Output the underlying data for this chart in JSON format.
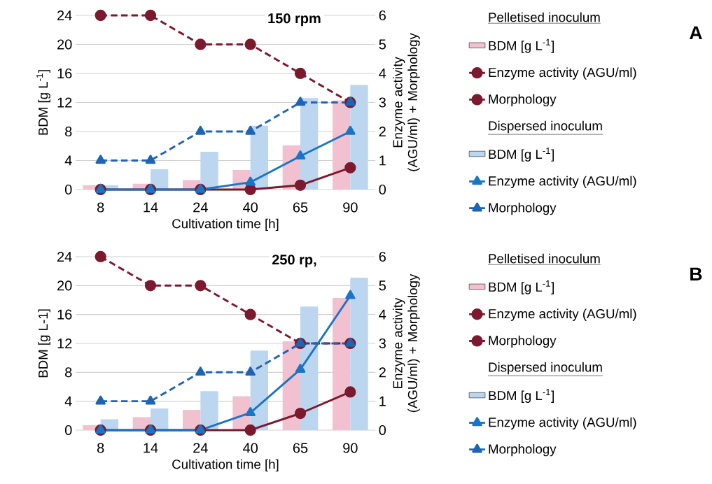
{
  "chart_data": [
    {
      "type": "bar",
      "title": "150 rpm",
      "xlabel": "Cultivation time [h]",
      "ylabel": "BDM [g L$^{-1}$]",
      "y2label": "Enzyme activity (AGU/ml) + Morphology",
      "categories": [
        "8",
        "14",
        "24",
        "40",
        "65",
        "90"
      ],
      "ylim": [
        0,
        24
      ],
      "yticks": [
        0,
        4,
        8,
        12,
        16,
        20,
        24
      ],
      "y2lim": [
        0,
        6
      ],
      "y2ticks": [
        0,
        1,
        2,
        3,
        4,
        5,
        6
      ],
      "grid": "y",
      "legend": "right",
      "annotations": [
        "Pelletised inoculum",
        "Dispersed inoculum",
        "A"
      ],
      "series": [
        {
          "name": "BDM [g L$^{-1}$]",
          "type": "bar",
          "color": "#f2c1cf",
          "values": [
            0.6,
            0.8,
            1.3,
            2.7,
            6.1,
            12.3
          ]
        },
        {
          "name": "Enzyme activity (AGU/ml)",
          "type": "line",
          "axis": "y2",
          "color": "#7b1a2f",
          "marker": "circle",
          "line_style": "solid",
          "values": [
            0,
            0,
            0,
            0,
            0.15,
            0.75
          ]
        },
        {
          "name": "Morphology",
          "type": "line",
          "axis": "y2",
          "color": "#7b1a2f",
          "marker": "circle",
          "line_style": "dashed",
          "values": [
            6,
            6,
            5,
            5,
            4,
            3
          ]
        },
        {
          "name": "BDM [g L$^{-1}$]",
          "type": "bar",
          "color": "#bcd6f0",
          "values": [
            0.6,
            2.8,
            5.2,
            8.8,
            12.6,
            14.4
          ]
        },
        {
          "name": "Enzyme activity (AGU/ml)",
          "type": "line",
          "axis": "y2",
          "color": "#1a75c6",
          "marker": "triangle",
          "line_style": "solid",
          "values": [
            0,
            0,
            0,
            0.25,
            1.15,
            2
          ]
        },
        {
          "name": "Morphology",
          "type": "line",
          "axis": "y2",
          "color": "#1f64b4",
          "marker": "triangle",
          "line_style": "dashed",
          "values": [
            1,
            1,
            2,
            2,
            3,
            3
          ]
        }
      ]
    },
    {
      "type": "bar",
      "title": "250 rp,",
      "xlabel": "Cultivation time [h]",
      "ylabel": "BDM [g L-1]",
      "y2label": "Enzyme activity (AGU/ml) + Morphology",
      "categories": [
        "8",
        "14",
        "24",
        "40",
        "65",
        "90"
      ],
      "ylim": [
        0,
        24
      ],
      "yticks": [
        0,
        4,
        8,
        12,
        16,
        20,
        24
      ],
      "y2lim": [
        0,
        6
      ],
      "y2ticks": [
        0,
        1,
        2,
        3,
        4,
        5,
        6
      ],
      "grid": "y",
      "legend": "right",
      "annotations": [
        "Pelletised inoculum",
        "Dispersed inoculum",
        "B"
      ],
      "series": [
        {
          "name": "BDM [g L$^{-1}$]",
          "type": "bar",
          "color": "#f2c1cf",
          "values": [
            0.7,
            1.8,
            2.8,
            4.7,
            12.3,
            18.3
          ]
        },
        {
          "name": "Enzyme activity (AGU/ml)",
          "type": "line",
          "axis": "y2",
          "color": "#7b1a2f",
          "marker": "circle",
          "line_style": "solid",
          "values": [
            0,
            0,
            0,
            0,
            0.58,
            1.32
          ]
        },
        {
          "name": "Morphology",
          "type": "line",
          "axis": "y2",
          "color": "#7b1a2f",
          "marker": "circle",
          "line_style": "dashed",
          "values": [
            6,
            5,
            5,
            4,
            3,
            3
          ]
        },
        {
          "name": "BDM [g L$^{-1}$]",
          "type": "bar",
          "color": "#bcd6f0",
          "values": [
            1.5,
            3.0,
            5.4,
            11.0,
            17.1,
            21.1
          ]
        },
        {
          "name": "Enzyme activity (AGU/ml)",
          "type": "line",
          "axis": "y2",
          "color": "#1a75c6",
          "marker": "triangle",
          "line_style": "solid",
          "values": [
            0,
            0,
            0,
            0.6,
            2.1,
            4.65
          ]
        },
        {
          "name": "Morphology",
          "type": "line",
          "axis": "y2",
          "color": "#1f64b4",
          "marker": "triangle",
          "line_style": "dashed",
          "values": [
            1,
            1,
            2,
            2,
            3,
            3
          ]
        }
      ]
    }
  ]
}
